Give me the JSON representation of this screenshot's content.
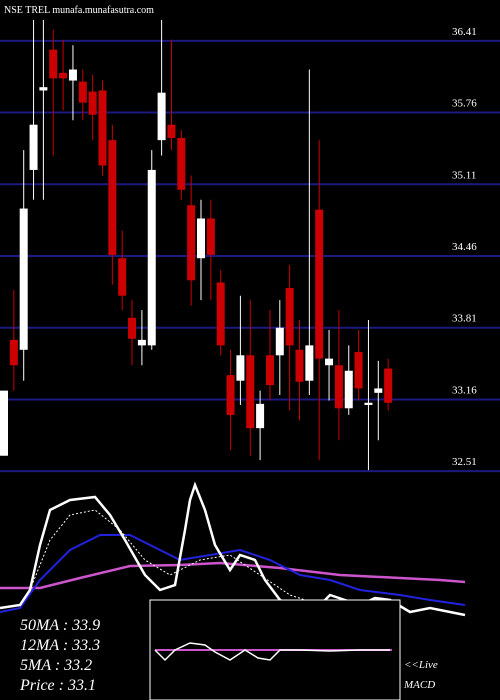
{
  "chart_data": {
    "type": "candlestick",
    "title": "NSE TREL munafa.munafasutra.com",
    "open": [
      32.65,
      33.7,
      33.61,
      35.24,
      35.96,
      36.33,
      36.12,
      36.05,
      36.04,
      35.95,
      35.96,
      35.51,
      34.44,
      33.9,
      33.65,
      33.65,
      35.51,
      35.65,
      35.53,
      34.92,
      34.44,
      34.8,
      34.22,
      33.38,
      33.33,
      33.56,
      32.9,
      33.56,
      33.56,
      34.17,
      33.61,
      33.33,
      34.88,
      33.47,
      33.47,
      33.08,
      33.59,
      33.11,
      33.22,
      33.44
    ],
    "high": [
      33.24,
      34.15,
      35.42,
      36.6,
      36.6,
      36.51,
      36.42,
      36.37,
      36.15,
      36.1,
      36.05,
      35.65,
      34.69,
      34.06,
      33.97,
      35.42,
      36.6,
      36.42,
      35.6,
      35.19,
      34.97,
      34.97,
      34.33,
      33.61,
      34.1,
      34.06,
      33.24,
      33.97,
      34.06,
      34.38,
      33.88,
      36.15,
      35.51,
      33.79,
      33.97,
      33.65,
      33.79,
      33.88,
      33.51,
      33.53
    ],
    "low": [
      32.65,
      33.24,
      33.33,
      34.97,
      34.97,
      35.37,
      35.78,
      35.69,
      35.69,
      35.51,
      35.19,
      34.2,
      33.97,
      33.47,
      33.47,
      33.61,
      35.37,
      35.42,
      34.97,
      34.01,
      34.06,
      34.06,
      33.56,
      32.7,
      33.11,
      32.65,
      32.61,
      33.15,
      33.2,
      33.06,
      32.97,
      33.2,
      32.61,
      33.15,
      32.79,
      33.02,
      33.15,
      32.52,
      32.79,
      33.06
    ],
    "close": [
      33.24,
      33.47,
      34.89,
      35.65,
      35.99,
      36.07,
      36.07,
      36.15,
      35.85,
      35.74,
      35.28,
      34.47,
      34.1,
      33.71,
      33.7,
      35.24,
      35.94,
      35.53,
      35.06,
      34.24,
      34.8,
      34.47,
      33.65,
      33.02,
      33.56,
      32.9,
      33.12,
      33.29,
      33.81,
      33.65,
      33.32,
      33.65,
      33.53,
      33.53,
      33.08,
      33.42,
      33.26,
      33.13,
      33.26,
      33.13
    ],
    "ylim": [
      32.43,
      36.78
    ],
    "yticks": [
      36.41,
      35.76,
      35.11,
      34.46,
      33.81,
      33.16,
      32.51
    ],
    "grid": true,
    "grid_color": "#1a1a80",
    "up_color": "#ffffff",
    "down_color": "#cc0000",
    "stats": [
      "50MA : 33.9",
      "12MA : 33.3",
      "5MA : 33.2",
      "Price  : 33.1"
    ],
    "macd_label": [
      "<<Live",
      "MACD"
    ]
  }
}
